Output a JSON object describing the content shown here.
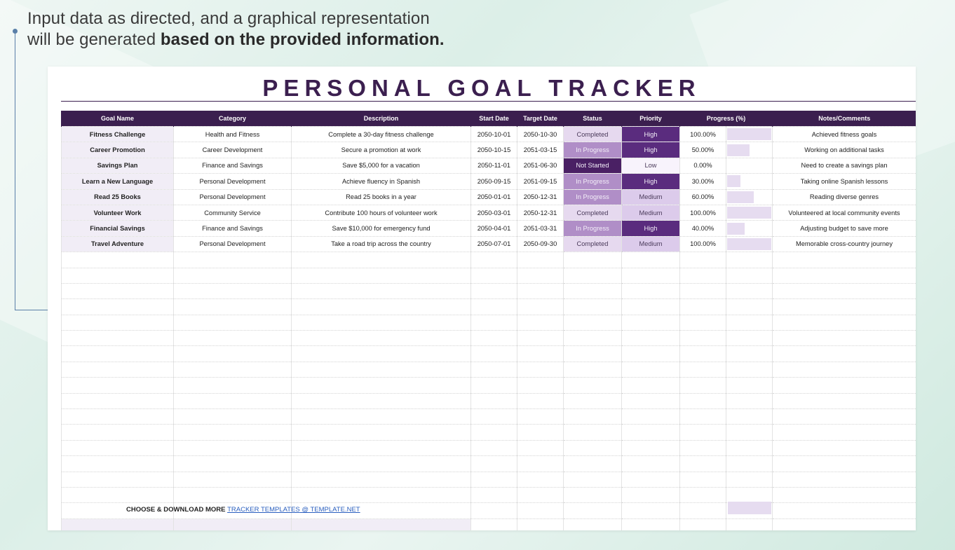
{
  "intro": {
    "line1": "Input data as directed, and a graphical representation",
    "line2_normal": "will be generated ",
    "line2_bold": "based on the provided information."
  },
  "sheet": {
    "title": "PERSONAL GOAL TRACKER",
    "columns": [
      "Goal Name",
      "Category",
      "Description",
      "Start Date",
      "Target Date",
      "Status",
      "Priority",
      "Progress (%)",
      "Notes/Comments"
    ],
    "rows": [
      {
        "goal": "Fitness Challenge",
        "category": "Health and Fitness",
        "description": "Complete a 30-day fitness challenge",
        "start": "2050-10-01",
        "target": "2050-10-30",
        "status": "Completed",
        "priority": "High",
        "progress": "100.00%",
        "progress_value": 1.0,
        "notes": "Achieved fitness goals"
      },
      {
        "goal": "Career Promotion",
        "category": "Career Development",
        "description": "Secure a promotion at work",
        "start": "2050-10-15",
        "target": "2051-03-15",
        "status": "In Progress",
        "priority": "High",
        "progress": "50.00%",
        "progress_value": 0.5,
        "notes": "Working on additional tasks"
      },
      {
        "goal": "Savings Plan",
        "category": "Finance and Savings",
        "description": "Save $5,000 for a vacation",
        "start": "2050-11-01",
        "target": "2051-06-30",
        "status": "Not Started",
        "priority": "Low",
        "progress": "0.00%",
        "progress_value": 0.0,
        "notes": "Need to create a savings plan"
      },
      {
        "goal": "Learn a New Language",
        "category": "Personal Development",
        "description": "Achieve fluency in Spanish",
        "start": "2050-09-15",
        "target": "2051-09-15",
        "status": "In Progress",
        "priority": "High",
        "progress": "30.00%",
        "progress_value": 0.3,
        "notes": "Taking online Spanish lessons"
      },
      {
        "goal": "Read 25 Books",
        "category": "Personal Development",
        "description": "Read 25 books in a year",
        "start": "2050-01-01",
        "target": "2050-12-31",
        "status": "In Progress",
        "priority": "Medium",
        "progress": "60.00%",
        "progress_value": 0.6,
        "notes": "Reading diverse genres"
      },
      {
        "goal": "Volunteer Work",
        "category": "Community Service",
        "description": "Contribute 100 hours of volunteer work",
        "start": "2050-03-01",
        "target": "2050-12-31",
        "status": "Completed",
        "priority": "Medium",
        "progress": "100.00%",
        "progress_value": 1.0,
        "notes": "Volunteered at local community events"
      },
      {
        "goal": "Financial Savings",
        "category": "Finance and Savings",
        "description": "Save $10,000 for emergency fund",
        "start": "2050-04-01",
        "target": "2051-03-31",
        "status": "In Progress",
        "priority": "High",
        "progress": "40.00%",
        "progress_value": 0.4,
        "notes": "Adjusting budget to save more"
      },
      {
        "goal": "Travel Adventure",
        "category": "Personal Development",
        "description": "Take a road trip across the country",
        "start": "2050-07-01",
        "target": "2050-09-30",
        "status": "Completed",
        "priority": "Medium",
        "progress": "100.00%",
        "progress_value": 1.0,
        "notes": "Memorable cross-country journey"
      }
    ]
  },
  "footer": {
    "text": "CHOOSE & DOWNLOAD MORE ",
    "link1": "TRACKER TEMPLATES",
    "link2": " @ TEMPLATE.NET"
  },
  "colors": {
    "header": "#3b1f4f",
    "completed": "#e6d9ef",
    "in_progress": "#b08ec7",
    "not_started": "#4a2064",
    "priority_high": "#5a2c7e",
    "priority_medium": "#dccbeb",
    "priority_low": "#f8f3fc",
    "progress_bar": "#e6dcf0"
  }
}
